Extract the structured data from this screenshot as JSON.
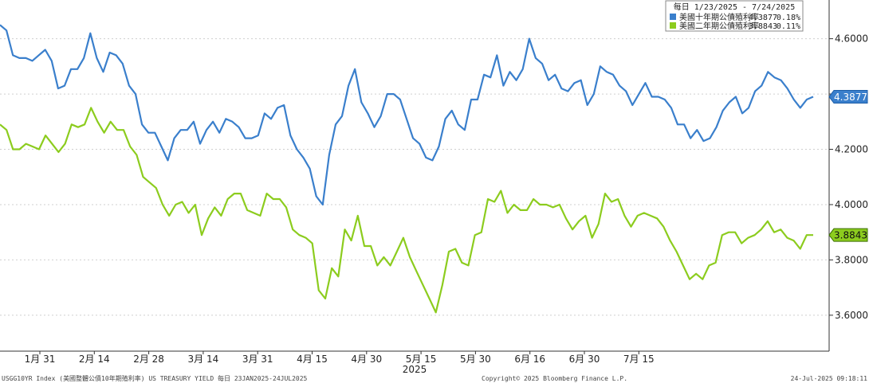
{
  "chart_data": {
    "type": "line",
    "legend": {
      "header": "每日 1/23/2025 - 7/24/2025",
      "placement": "top-right"
    },
    "x_tick_labels": [
      "1月 31",
      "2月 14",
      "2月 28",
      "3月 14",
      "3月 31",
      "4月 15",
      "4月 30",
      "5月 15",
      "5月 30",
      "6月 16",
      "6月 30",
      "7月 15"
    ],
    "year_label": "2025",
    "y_tick_labels": [
      "4.6000",
      "4.4000",
      "4.2000",
      "4.0000",
      "3.8000",
      "3.6000"
    ],
    "y_ticks": [
      4.6,
      4.4,
      4.2,
      4.0,
      3.8,
      3.6
    ],
    "ylim": [
      3.47,
      4.74
    ],
    "series": [
      {
        "name": "美國十年期公債殖利率",
        "last_label": "4.3877",
        "change_label": "0.18%",
        "color": "#3a7fcc",
        "values": [
          4.65,
          4.63,
          4.54,
          4.53,
          4.53,
          4.52,
          4.54,
          4.56,
          4.52,
          4.42,
          4.43,
          4.49,
          4.49,
          4.53,
          4.62,
          4.53,
          4.48,
          4.55,
          4.54,
          4.51,
          4.43,
          4.4,
          4.29,
          4.26,
          4.26,
          4.21,
          4.16,
          4.24,
          4.27,
          4.27,
          4.3,
          4.22,
          4.27,
          4.3,
          4.26,
          4.31,
          4.3,
          4.28,
          4.24,
          4.24,
          4.25,
          4.33,
          4.31,
          4.35,
          4.36,
          4.25,
          4.2,
          4.17,
          4.13,
          4.03,
          4.0,
          4.18,
          4.29,
          4.32,
          4.43,
          4.49,
          4.37,
          4.33,
          4.28,
          4.32,
          4.4,
          4.4,
          4.38,
          4.31,
          4.24,
          4.22,
          4.17,
          4.16,
          4.21,
          4.31,
          4.34,
          4.29,
          4.27,
          4.38,
          4.38,
          4.47,
          4.46,
          4.54,
          4.43,
          4.48,
          4.45,
          4.49,
          4.6,
          4.53,
          4.51,
          4.45,
          4.47,
          4.42,
          4.41,
          4.44,
          4.45,
          4.36,
          4.4,
          4.5,
          4.48,
          4.47,
          4.43,
          4.41,
          4.36,
          4.4,
          4.44,
          4.39,
          4.39,
          4.38,
          4.35,
          4.29,
          4.29,
          4.24,
          4.27,
          4.23,
          4.24,
          4.28,
          4.34,
          4.37,
          4.39,
          4.33,
          4.35,
          4.41,
          4.43,
          4.48,
          4.46,
          4.45,
          4.42,
          4.38,
          4.35,
          4.38,
          4.39
        ]
      },
      {
        "name": "美國二年期公債殖利率",
        "last_label": "3.8843",
        "change_label": "0.11%",
        "color": "#8ccc1e",
        "values": [
          4.29,
          4.27,
          4.2,
          4.2,
          4.22,
          4.21,
          4.2,
          4.25,
          4.22,
          4.19,
          4.22,
          4.29,
          4.28,
          4.29,
          4.35,
          4.3,
          4.26,
          4.3,
          4.27,
          4.27,
          4.21,
          4.18,
          4.1,
          4.08,
          4.06,
          4.0,
          3.96,
          4.0,
          4.01,
          3.97,
          4.0,
          3.89,
          3.95,
          3.99,
          3.96,
          4.02,
          4.04,
          4.04,
          3.98,
          3.97,
          3.96,
          4.04,
          4.02,
          4.02,
          3.99,
          3.91,
          3.89,
          3.88,
          3.86,
          3.69,
          3.66,
          3.77,
          3.74,
          3.91,
          3.87,
          3.96,
          3.85,
          3.85,
          3.78,
          3.81,
          3.78,
          3.83,
          3.88,
          3.81,
          3.76,
          3.71,
          3.66,
          3.61,
          3.71,
          3.83,
          3.84,
          3.79,
          3.78,
          3.89,
          3.9,
          4.02,
          4.01,
          4.05,
          3.97,
          4.0,
          3.98,
          3.98,
          4.02,
          4.0,
          4.0,
          3.99,
          4.0,
          3.95,
          3.91,
          3.94,
          3.96,
          3.88,
          3.93,
          4.04,
          4.01,
          4.02,
          3.96,
          3.92,
          3.96,
          3.97,
          3.96,
          3.95,
          3.92,
          3.87,
          3.83,
          3.78,
          3.73,
          3.75,
          3.73,
          3.78,
          3.79,
          3.89,
          3.9,
          3.9,
          3.86,
          3.88,
          3.89,
          3.91,
          3.94,
          3.9,
          3.91,
          3.88,
          3.87,
          3.84,
          3.89,
          3.89
        ]
      }
    ]
  },
  "footer": {
    "left": "USGG10YR Index (美國整體公債10年期殖利率) US TREASURY YIELD  每日 23JAN2025-24JUL2025",
    "center": "Copyright© 2025 Bloomberg Finance L.P.",
    "right": "24-Jul-2025 09:18:11"
  }
}
